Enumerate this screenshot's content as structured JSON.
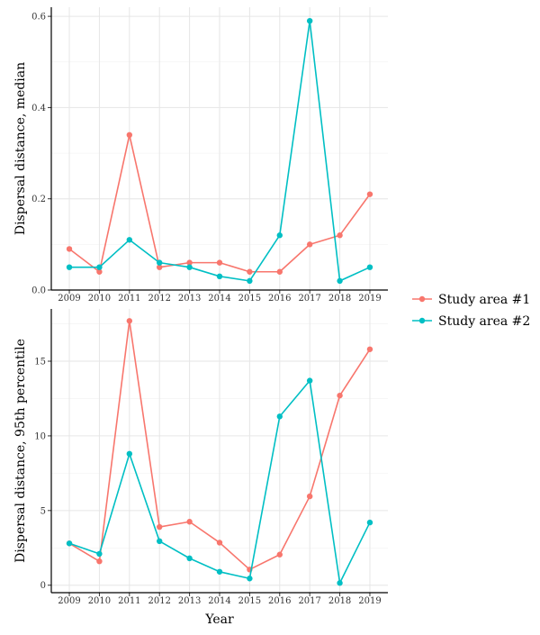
{
  "chart_data": {
    "type": "line",
    "xlabel": "Year",
    "legend": {
      "position": "right",
      "entries": [
        {
          "name": "Study area #1",
          "color": "#F8766D"
        },
        {
          "name": "Study area #2",
          "color": "#00BFC4"
        }
      ]
    },
    "panels": [
      {
        "ylabel": "Dispersal distance, median",
        "ylim": [
          0,
          0.62
        ],
        "yticks": [
          0.0,
          0.2,
          0.4,
          0.6
        ],
        "ytick_labels": [
          "0.0",
          "0.2",
          "0.4",
          "0.6"
        ],
        "x": [
          2009,
          2010,
          2011,
          2012,
          2013,
          2014,
          2015,
          2016,
          2017,
          2018,
          2019
        ],
        "x_labels": [
          "2009",
          "2010",
          "2011",
          "2012",
          "2013",
          "2014",
          "2015",
          "2016",
          "2017",
          "2018",
          "2019"
        ],
        "series": [
          {
            "name": "Study area #1",
            "values": [
              0.09,
              0.04,
              0.34,
              0.05,
              0.06,
              0.06,
              0.04,
              0.04,
              0.1,
              0.12,
              0.21
            ]
          },
          {
            "name": "Study area #2",
            "values": [
              0.05,
              0.05,
              0.11,
              0.06,
              0.05,
              0.03,
              0.02,
              0.12,
              0.59,
              0.02,
              0.05
            ]
          }
        ]
      },
      {
        "ylabel": "Dispersal distance, 95th percentile",
        "ylim": [
          -0.5,
          18.5
        ],
        "yticks": [
          0,
          5,
          10,
          15
        ],
        "ytick_labels": [
          "0",
          "5",
          "10",
          "15"
        ],
        "x": [
          2009,
          2010,
          2011,
          2012,
          2013,
          2014,
          2015,
          2016,
          2017,
          2018,
          2019
        ],
        "x_labels": [
          "2009",
          "2010",
          "2011",
          "2012",
          "2013",
          "2014",
          "2015",
          "2016",
          "2017",
          "2018",
          "2019"
        ],
        "series": [
          {
            "name": "Study area #1",
            "values": [
              2.8,
              1.6,
              17.7,
              3.9,
              4.25,
              2.85,
              1.05,
              2.05,
              5.95,
              12.7,
              15.8
            ]
          },
          {
            "name": "Study area #2",
            "values": [
              2.8,
              2.1,
              8.8,
              2.95,
              1.8,
              0.9,
              0.45,
              11.3,
              13.7,
              0.15,
              4.2
            ]
          }
        ]
      }
    ]
  }
}
